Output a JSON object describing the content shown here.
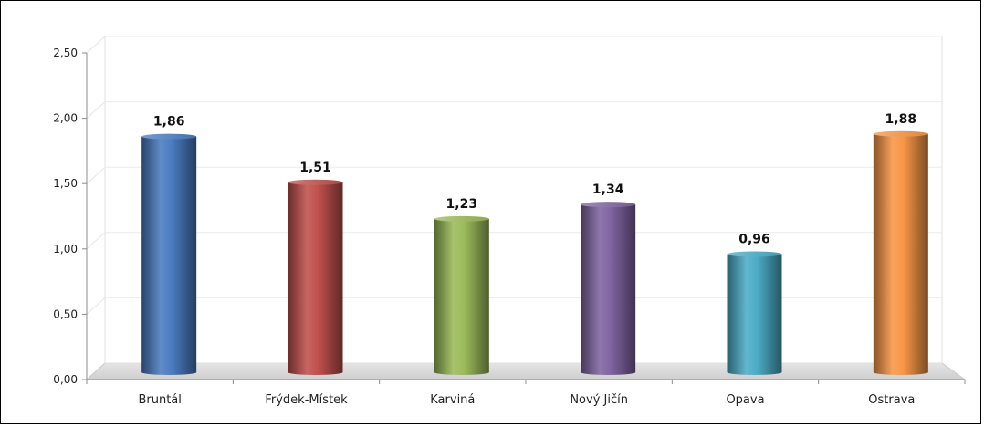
{
  "chart_data": {
    "type": "bar",
    "categories": [
      "Bruntál",
      "Frýdek-Místek",
      "Karviná",
      "Nový Jičín",
      "Opava",
      "Ostrava"
    ],
    "values": [
      1.86,
      1.51,
      1.23,
      1.34,
      0.96,
      1.88
    ],
    "value_labels": [
      "1,86",
      "1,51",
      "1,23",
      "1,34",
      "0,96",
      "1,88"
    ],
    "y_ticks": [
      "0,00",
      "0,50",
      "1,00",
      "1,50",
      "2,00",
      "2,50"
    ],
    "ylim": [
      0,
      2.5
    ],
    "title": "",
    "xlabel": "",
    "ylabel": "",
    "grid": true,
    "legend": "none",
    "colors": [
      "#4a7cc0",
      "#c0504d",
      "#9bbb59",
      "#8064a2",
      "#4bacc6",
      "#f79646"
    ]
  }
}
